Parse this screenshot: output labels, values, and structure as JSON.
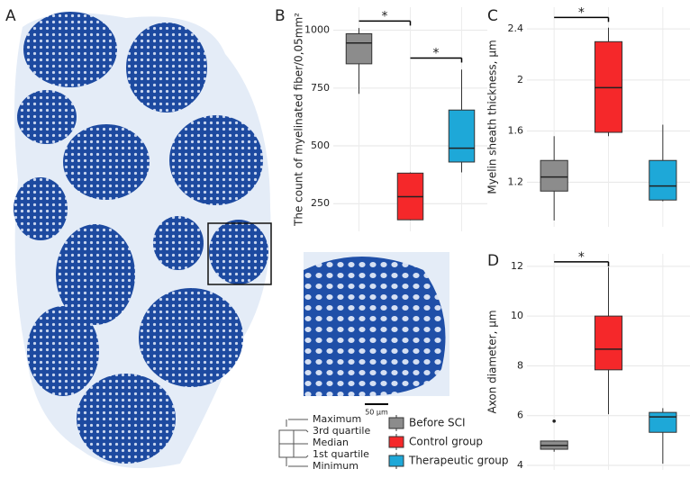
{
  "panel_labels": [
    "A",
    "B",
    "C",
    "D"
  ],
  "scale_bar_label": "50 µm",
  "box_key": [
    "Maximum",
    "3rd quartile",
    "Median",
    "1st quartile",
    "Minimum"
  ],
  "legend": [
    {
      "name": "Before SCI",
      "color": "#8c8c8c"
    },
    {
      "name": "Control group",
      "color": "#f5282a"
    },
    {
      "name": "Therapeutic group",
      "color": "#1ea8d8"
    }
  ],
  "chart_data": [
    {
      "type": "box",
      "ylabel": "The count of myelinated fiber/0,05mm²",
      "ylim": [
        130,
        1100
      ],
      "yticks": [
        250,
        500,
        750,
        1000
      ],
      "grid": true,
      "boxes": [
        {
          "min": 725,
          "q1": 855,
          "median": 945,
          "q3": 985,
          "max": 1010,
          "outliers": []
        },
        {
          "min": 178,
          "q1": 180,
          "median": 280,
          "q3": 382,
          "max": 385,
          "outliers": []
        },
        {
          "min": 385,
          "q1": 430,
          "median": 490,
          "q3": 655,
          "max": 830,
          "outliers": []
        }
      ],
      "significance": [
        {
          "from": 0,
          "to": 1,
          "y": 1040,
          "label": "*"
        },
        {
          "from": 1,
          "to": 2,
          "y": 880,
          "label": "*"
        }
      ]
    },
    {
      "type": "box",
      "ylabel": "Myelin sheath thickness, µm",
      "ylim": [
        0.85,
        2.57
      ],
      "yticks": [
        1.2,
        1.6,
        2.0,
        2.4
      ],
      "grid": true,
      "boxes": [
        {
          "min": 0.9,
          "q1": 1.13,
          "median": 1.24,
          "q3": 1.37,
          "max": 1.56,
          "outliers": []
        },
        {
          "min": 1.56,
          "q1": 1.59,
          "median": 1.94,
          "q3": 2.3,
          "max": 2.41,
          "outliers": []
        },
        {
          "min": 1.05,
          "q1": 1.06,
          "median": 1.17,
          "q3": 1.37,
          "max": 1.65,
          "outliers": []
        }
      ],
      "significance": [
        {
          "from": 0,
          "to": 1,
          "y": 2.49,
          "label": "*"
        }
      ]
    },
    {
      "type": "box",
      "ylabel": "Axon diameter, µm",
      "ylim": [
        3.82,
        12.5
      ],
      "yticks": [
        4,
        6,
        8,
        10,
        12
      ],
      "grid": true,
      "boxes": [
        {
          "min": 4.55,
          "q1": 4.65,
          "median": 4.8,
          "q3": 4.98,
          "max": 5.0,
          "outliers": [
            5.78
          ]
        },
        {
          "min": 6.06,
          "q1": 7.84,
          "median": 8.67,
          "q3": 10.0,
          "max": 11.96,
          "outliers": []
        },
        {
          "min": 4.07,
          "q1": 5.33,
          "median": 5.95,
          "q3": 6.13,
          "max": 6.3,
          "outliers": []
        }
      ],
      "significance": [
        {
          "from": 0,
          "to": 1,
          "y": 12.18,
          "label": "*"
        }
      ]
    }
  ]
}
